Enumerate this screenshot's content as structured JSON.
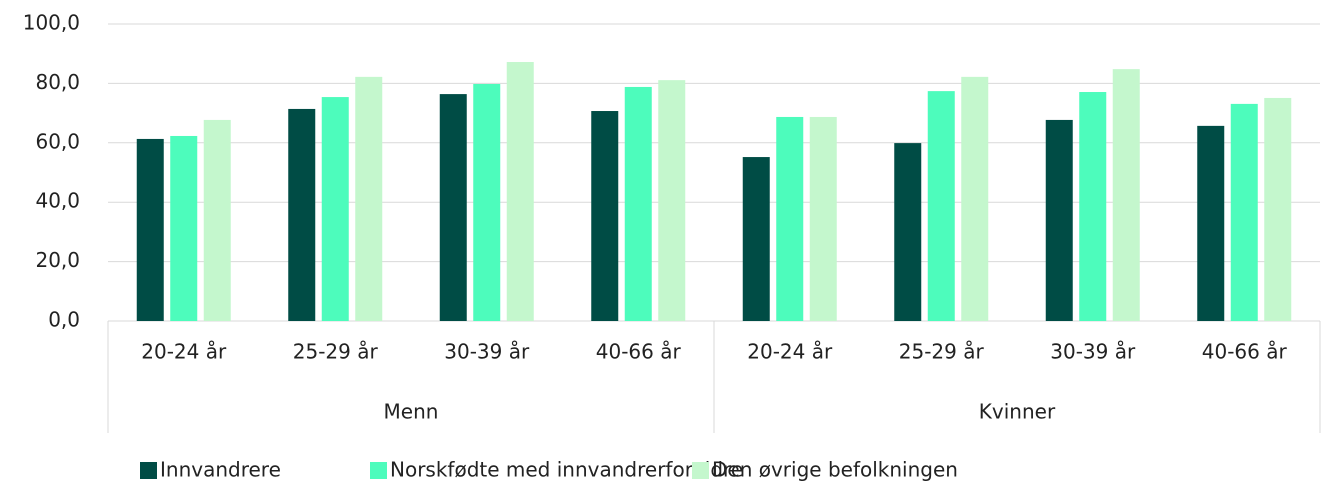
{
  "chart_data": {
    "type": "bar",
    "categories": [
      "20-24 år",
      "25-29 år",
      "30-39 år",
      "40-66 år",
      "20-24 år",
      "25-29 år",
      "30-39 år",
      "40-66 år"
    ],
    "groups": [
      "Menn",
      "Kvinner"
    ],
    "series": [
      {
        "name": "Innvandrere",
        "color": "#004c45",
        "values": [
          61.3,
          71.4,
          76.4,
          70.7,
          55.2,
          59.9,
          67.7,
          65.7
        ]
      },
      {
        "name": "Norskfødte med innvandrerforeldre",
        "color": "#4dfcbc",
        "values": [
          62.3,
          75.4,
          79.8,
          78.8,
          68.7,
          77.4,
          77.1,
          73.1
        ]
      },
      {
        "name": "Den øvrige befolkningen",
        "color": "#c4f7cd",
        "values": [
          67.7,
          82.2,
          87.2,
          81.1,
          68.7,
          82.2,
          84.8,
          75.1
        ]
      }
    ],
    "ylim": [
      0,
      100
    ],
    "yticks": [
      {
        "value": 0,
        "label": "0,0"
      },
      {
        "value": 20,
        "label": "20,0"
      },
      {
        "value": 40,
        "label": "40,0"
      },
      {
        "value": 60,
        "label": "60,0"
      },
      {
        "value": 80,
        "label": "80,0"
      },
      {
        "value": 100,
        "label": "100,0"
      }
    ],
    "grid": true,
    "legend": "bottom"
  }
}
